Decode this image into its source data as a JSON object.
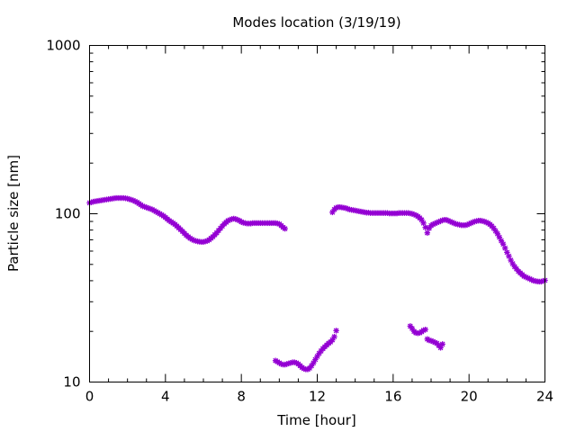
{
  "chart_data": {
    "type": "scatter",
    "title": "Modes location (3/19/19)",
    "xlabel": "Time [hour]",
    "ylabel": "Particle size [nm]",
    "xlim": [
      0,
      24
    ],
    "ylim": [
      10,
      1000
    ],
    "yscale": "log",
    "x_ticks": [
      "0",
      "4",
      "8",
      "12",
      "16",
      "20",
      "24"
    ],
    "y_ticks": [
      "10",
      "100",
      "1000"
    ],
    "grid": false,
    "legend": "none",
    "marker_color": "#9400d3",
    "series": [
      {
        "points": [
          [
            0.0,
            116
          ],
          [
            0.1,
            117
          ],
          [
            0.2,
            118
          ],
          [
            0.3,
            118.5
          ],
          [
            0.4,
            119
          ],
          [
            0.5,
            119.5
          ],
          [
            0.6,
            120
          ],
          [
            0.7,
            120.5
          ],
          [
            0.8,
            121
          ],
          [
            0.9,
            121.5
          ],
          [
            1.0,
            122
          ],
          [
            1.1,
            122.5
          ],
          [
            1.2,
            123
          ],
          [
            1.3,
            123.5
          ],
          [
            1.4,
            124
          ],
          [
            1.5,
            124
          ],
          [
            1.6,
            124
          ],
          [
            1.7,
            124
          ],
          [
            1.8,
            124
          ],
          [
            1.9,
            123.5
          ],
          [
            2.0,
            123
          ],
          [
            2.1,
            122
          ],
          [
            2.2,
            121
          ],
          [
            2.3,
            120
          ],
          [
            2.4,
            118.5
          ],
          [
            2.5,
            117
          ],
          [
            2.6,
            115
          ],
          [
            2.7,
            113
          ],
          [
            2.8,
            111
          ],
          [
            2.9,
            110
          ],
          [
            3.0,
            109
          ],
          [
            3.1,
            108
          ],
          [
            3.2,
            107
          ],
          [
            3.3,
            106
          ],
          [
            3.4,
            104.5
          ],
          [
            3.5,
            103
          ],
          [
            3.6,
            101.5
          ],
          [
            3.7,
            100
          ],
          [
            3.8,
            98.5
          ],
          [
            3.9,
            97
          ],
          [
            4.0,
            95
          ],
          [
            4.1,
            93
          ],
          [
            4.2,
            91
          ],
          [
            4.3,
            89.5
          ],
          [
            4.4,
            88
          ],
          [
            4.5,
            86.5
          ],
          [
            4.6,
            84.5
          ],
          [
            4.7,
            82.5
          ],
          [
            4.8,
            80.5
          ],
          [
            4.9,
            78.5
          ],
          [
            5.0,
            76.5
          ],
          [
            5.1,
            74.5
          ],
          [
            5.2,
            73
          ],
          [
            5.3,
            71.5
          ],
          [
            5.4,
            70.5
          ],
          [
            5.5,
            69.5
          ],
          [
            5.6,
            69
          ],
          [
            5.7,
            68.5
          ],
          [
            5.8,
            68.2
          ],
          [
            5.9,
            68
          ],
          [
            6.0,
            68
          ],
          [
            6.1,
            68.5
          ],
          [
            6.2,
            69
          ],
          [
            6.3,
            70
          ],
          [
            6.4,
            71.5
          ],
          [
            6.5,
            73
          ],
          [
            6.6,
            75
          ],
          [
            6.7,
            77
          ],
          [
            6.8,
            79.5
          ],
          [
            6.9,
            82
          ],
          [
            7.0,
            84.5
          ],
          [
            7.1,
            87
          ],
          [
            7.2,
            89
          ],
          [
            7.3,
            91
          ],
          [
            7.4,
            92
          ],
          [
            7.5,
            93
          ],
          [
            7.6,
            93.5
          ],
          [
            7.7,
            93
          ],
          [
            7.8,
            92
          ],
          [
            7.9,
            91
          ],
          [
            8.0,
            89.5
          ],
          [
            8.1,
            88.5
          ],
          [
            8.2,
            88
          ],
          [
            8.3,
            87.5
          ],
          [
            8.4,
            87.5
          ],
          [
            8.5,
            87.5
          ],
          [
            8.6,
            88
          ],
          [
            8.7,
            88
          ],
          [
            8.8,
            88
          ],
          [
            8.9,
            88
          ],
          [
            9.0,
            88
          ],
          [
            9.1,
            88
          ],
          [
            9.2,
            88
          ],
          [
            9.3,
            88
          ],
          [
            9.4,
            88
          ],
          [
            9.5,
            88
          ],
          [
            9.6,
            88
          ],
          [
            9.7,
            88
          ],
          [
            9.8,
            88
          ],
          [
            9.9,
            87.5
          ],
          [
            10.0,
            87
          ],
          [
            10.1,
            85
          ],
          [
            10.2,
            83
          ],
          [
            10.3,
            81.5
          ],
          [
            12.8,
            102
          ],
          [
            12.9,
            106
          ],
          [
            13.0,
            108.5
          ],
          [
            13.1,
            109.5
          ],
          [
            13.2,
            109.5
          ],
          [
            13.3,
            109
          ],
          [
            13.4,
            108.5
          ],
          [
            13.5,
            108
          ],
          [
            13.6,
            107
          ],
          [
            13.7,
            106
          ],
          [
            13.8,
            105.5
          ],
          [
            13.9,
            105
          ],
          [
            14.0,
            104.5
          ],
          [
            14.1,
            104
          ],
          [
            14.2,
            103.5
          ],
          [
            14.3,
            103
          ],
          [
            14.4,
            102.5
          ],
          [
            14.5,
            102
          ],
          [
            14.6,
            101.5
          ],
          [
            14.7,
            101.5
          ],
          [
            14.8,
            101
          ],
          [
            14.9,
            101
          ],
          [
            15.0,
            101
          ],
          [
            15.1,
            101
          ],
          [
            15.2,
            101
          ],
          [
            15.3,
            101
          ],
          [
            15.4,
            101
          ],
          [
            15.5,
            101
          ],
          [
            15.6,
            101
          ],
          [
            15.7,
            101
          ],
          [
            15.8,
            100.5
          ],
          [
            15.9,
            100.5
          ],
          [
            16.0,
            100.5
          ],
          [
            16.1,
            100.5
          ],
          [
            16.2,
            100.5
          ],
          [
            16.3,
            101
          ],
          [
            16.4,
            101
          ],
          [
            16.5,
            101
          ],
          [
            16.6,
            101
          ],
          [
            16.7,
            101
          ],
          [
            16.8,
            101
          ],
          [
            16.9,
            100.5
          ],
          [
            17.0,
            100
          ],
          [
            17.1,
            99
          ],
          [
            17.2,
            98
          ],
          [
            17.3,
            96.5
          ],
          [
            17.4,
            94.5
          ],
          [
            17.5,
            92
          ],
          [
            17.6,
            88
          ],
          [
            17.7,
            83
          ],
          [
            17.8,
            77
          ],
          [
            17.9,
            82
          ],
          [
            18.0,
            85
          ],
          [
            18.1,
            86.5
          ],
          [
            18.2,
            87.5
          ],
          [
            18.3,
            88.5
          ],
          [
            18.4,
            89.5
          ],
          [
            18.5,
            90.5
          ],
          [
            18.6,
            91.5
          ],
          [
            18.7,
            92
          ],
          [
            18.8,
            92
          ],
          [
            18.9,
            91
          ],
          [
            19.0,
            90
          ],
          [
            19.1,
            89
          ],
          [
            19.2,
            88
          ],
          [
            19.3,
            87
          ],
          [
            19.4,
            86.5
          ],
          [
            19.5,
            86
          ],
          [
            19.6,
            85.5
          ],
          [
            19.7,
            85.5
          ],
          [
            19.8,
            85.5
          ],
          [
            19.9,
            86
          ],
          [
            20.0,
            87
          ],
          [
            20.1,
            88
          ],
          [
            20.2,
            89
          ],
          [
            20.3,
            90
          ],
          [
            20.4,
            90.5
          ],
          [
            20.5,
            91
          ],
          [
            20.6,
            91
          ],
          [
            20.7,
            90.5
          ],
          [
            20.8,
            90
          ],
          [
            20.9,
            89
          ],
          [
            21.0,
            88
          ],
          [
            21.1,
            86.5
          ],
          [
            21.2,
            84.5
          ],
          [
            21.3,
            82
          ],
          [
            21.4,
            79
          ],
          [
            21.5,
            76
          ],
          [
            21.6,
            72.5
          ],
          [
            21.7,
            69
          ],
          [
            21.8,
            66
          ],
          [
            21.9,
            62.5
          ],
          [
            22.0,
            59
          ],
          [
            22.1,
            56
          ],
          [
            22.2,
            53
          ],
          [
            22.3,
            50.5
          ],
          [
            22.4,
            48.5
          ],
          [
            22.5,
            47
          ],
          [
            22.6,
            45.5
          ],
          [
            22.7,
            44.5
          ],
          [
            22.8,
            43.5
          ],
          [
            22.9,
            42.5
          ],
          [
            23.0,
            42
          ],
          [
            23.1,
            41.5
          ],
          [
            23.2,
            41
          ],
          [
            23.3,
            40.5
          ],
          [
            23.4,
            40
          ],
          [
            23.5,
            39.8
          ],
          [
            23.6,
            39.6
          ],
          [
            23.7,
            39.5
          ],
          [
            23.8,
            39.5
          ],
          [
            23.9,
            39.8
          ],
          [
            24.0,
            40.2
          ]
        ]
      },
      {
        "points": [
          [
            9.8,
            13.4
          ],
          [
            9.9,
            13.2
          ],
          [
            10.0,
            13.0
          ],
          [
            10.1,
            12.8
          ],
          [
            10.2,
            12.7
          ],
          [
            10.3,
            12.7
          ],
          [
            10.4,
            12.8
          ],
          [
            10.5,
            12.9
          ],
          [
            10.6,
            13.0
          ],
          [
            10.7,
            13.1
          ],
          [
            10.8,
            13.1
          ],
          [
            10.9,
            13.0
          ],
          [
            11.0,
            12.8
          ],
          [
            11.1,
            12.5
          ],
          [
            11.2,
            12.2
          ],
          [
            11.3,
            12.0
          ],
          [
            11.4,
            11.9
          ],
          [
            11.5,
            11.9
          ],
          [
            11.6,
            12.1
          ],
          [
            11.7,
            12.5
          ],
          [
            11.8,
            13.0
          ],
          [
            11.9,
            13.6
          ],
          [
            12.0,
            14.2
          ],
          [
            12.1,
            14.8
          ],
          [
            12.2,
            15.3
          ],
          [
            12.3,
            15.8
          ],
          [
            12.4,
            16.2
          ],
          [
            12.5,
            16.6
          ],
          [
            12.6,
            17.0
          ],
          [
            12.7,
            17.3
          ],
          [
            12.8,
            17.8
          ],
          [
            12.9,
            18.6
          ],
          [
            13.0,
            20.2
          ],
          [
            16.9,
            21.5
          ],
          [
            17.0,
            20.8
          ],
          [
            17.1,
            20.0
          ],
          [
            17.2,
            19.6
          ],
          [
            17.3,
            19.5
          ],
          [
            17.4,
            19.6
          ],
          [
            17.5,
            19.9
          ],
          [
            17.6,
            20.3
          ],
          [
            17.7,
            20.5
          ],
          [
            17.8,
            18.0
          ],
          [
            17.9,
            17.7
          ],
          [
            18.0,
            17.6
          ],
          [
            18.1,
            17.4
          ],
          [
            18.2,
            17.2
          ],
          [
            18.3,
            17.0
          ],
          [
            18.4,
            16.5
          ],
          [
            18.5,
            16.0
          ],
          [
            18.6,
            16.8
          ]
        ]
      }
    ]
  }
}
